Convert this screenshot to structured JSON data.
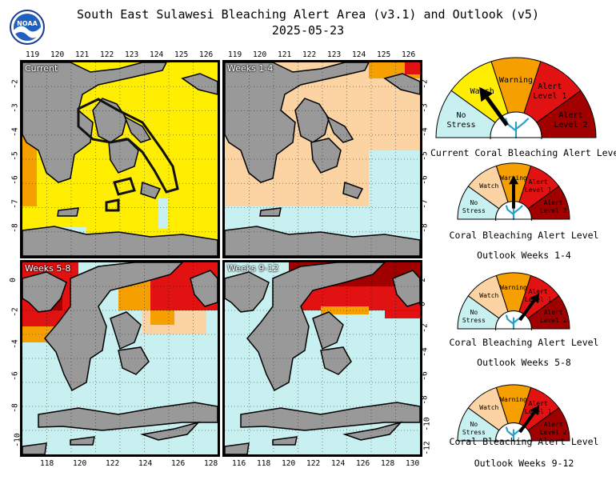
{
  "header": {
    "title_line1": "South East Sulawesi Bleaching Alert Area (v3.1) and Outlook (v5)",
    "title_line2": "2025-05-23",
    "logo_text": "NOAA"
  },
  "panels": [
    {
      "label": "Current"
    },
    {
      "label": "Weeks 1-4"
    },
    {
      "label": "Weeks 5-8"
    },
    {
      "label": "Weeks 9-12"
    }
  ],
  "axes": {
    "top_lon_ticks": [
      "119",
      "120",
      "121",
      "122",
      "123",
      "124",
      "125",
      "126"
    ],
    "top_lat_ticks": [
      "-2",
      "-3",
      "-4",
      "-5",
      "-6",
      "-7",
      "-8"
    ],
    "bottom_left_lon_ticks": [
      "118",
      "120",
      "122",
      "124",
      "126",
      "128"
    ],
    "bottom_right_lon_ticks": [
      "116",
      "118",
      "120",
      "122",
      "124",
      "126",
      "128",
      "130"
    ],
    "bottom_left_lat_ticks": [
      "0",
      "-2",
      "-4",
      "-6",
      "-8",
      "-10"
    ],
    "bottom_right_lat_ticks": [
      "2",
      "0",
      "-2",
      "-4",
      "-6",
      "-8",
      "-10",
      "-12"
    ]
  },
  "legend": {
    "levels": [
      "No Stress",
      "Watch",
      "Warning",
      "Alert Level 1",
      "Alert Level 2"
    ],
    "colors": {
      "no_stress": "#c8f0f0",
      "watch": "#ffee00",
      "watch_outlook": "#fcd3a3",
      "warning": "#f5a000",
      "alert1": "#e31212",
      "alert2": "#a00000",
      "land": "#999999"
    }
  },
  "gauges": [
    {
      "caption1": "Current Coral Bleaching Alert Level",
      "caption2": "",
      "level": "Watch"
    },
    {
      "caption1": "Coral Bleaching Alert Level",
      "caption2": "Outlook Weeks 1-4",
      "level": "Warning"
    },
    {
      "caption1": "Coral Bleaching Alert Level",
      "caption2": "Outlook Weeks 5-8",
      "level": "Alert Level 1"
    },
    {
      "caption1": "Coral Bleaching Alert Level",
      "caption2": "Outlook Weeks 9-12",
      "level": "Alert Level 1"
    }
  ]
}
